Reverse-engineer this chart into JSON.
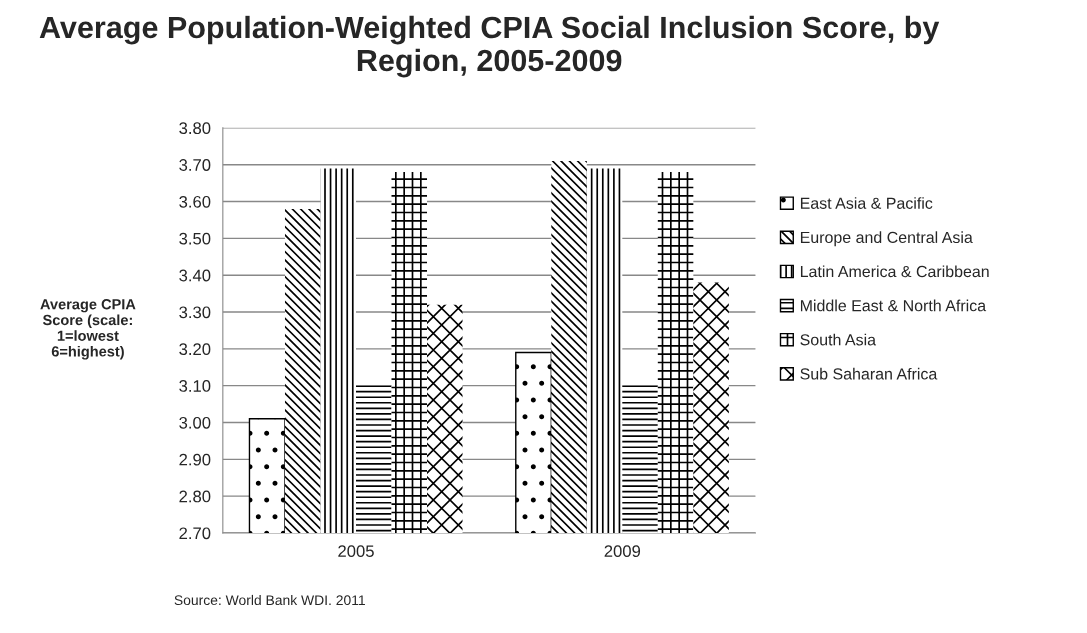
{
  "chart_data": {
    "type": "bar",
    "title": "Average Population-Weighted CPIA Social Inclusion Score, by Region, 2005-2009",
    "ylabel": "Average CPIA Score (scale: 1=lowest 6=highest)",
    "categories": [
      "2005",
      "2009"
    ],
    "series": [
      {
        "name": "East Asia & Pacific",
        "color": "#000000",
        "values": [
          3.01,
          3.19
        ]
      },
      {
        "name": "Europe and Central Asia",
        "color": "#000000",
        "values": [
          3.58,
          3.71
        ]
      },
      {
        "name": "Latin America & Caribbean",
        "color": "#000000",
        "values": [
          3.69,
          3.69
        ]
      },
      {
        "name": "Middle East & North Africa",
        "color": "#000000",
        "values": [
          3.1,
          3.1
        ]
      },
      {
        "name": "South Asia",
        "color": "#000000",
        "values": [
          3.68,
          3.68
        ]
      },
      {
        "name": "Sub Saharan Africa",
        "color": "#000000",
        "values": [
          3.32,
          3.38
        ]
      }
    ],
    "ylim": [
      2.7,
      3.8
    ],
    "yticks": [
      {
        "value": 2.7,
        "label": "2.70"
      },
      {
        "value": 2.8,
        "label": "2.80"
      },
      {
        "value": 2.9,
        "label": "2.90"
      },
      {
        "value": 3.0,
        "label": "3.00"
      },
      {
        "value": 3.1,
        "label": "3.10"
      },
      {
        "value": 3.2,
        "label": "3.20"
      },
      {
        "value": 3.3,
        "label": "3.30"
      },
      {
        "value": 3.4,
        "label": "3.40"
      },
      {
        "value": 3.5,
        "label": "3.50"
      },
      {
        "value": 3.6,
        "label": "3.60"
      },
      {
        "value": 3.7,
        "label": "3.70"
      },
      {
        "value": 3.8,
        "label": "3.80"
      }
    ],
    "grid": "y",
    "legend": "right",
    "annotations": [
      "Source: World Bank WDI. 2011"
    ]
  }
}
